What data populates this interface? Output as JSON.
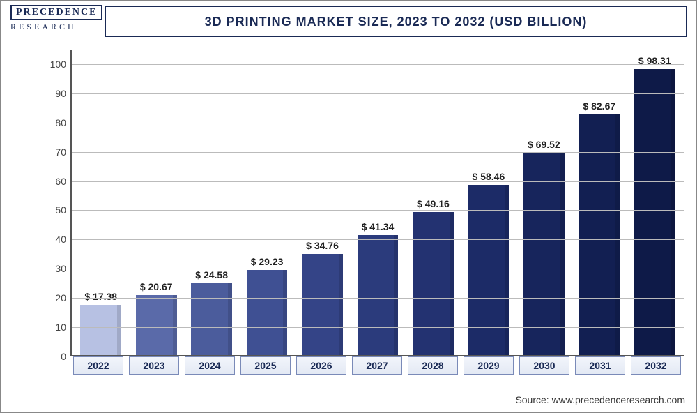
{
  "logo": {
    "top": "PRECEDENCE",
    "bottom": "RESEARCH"
  },
  "title": "3D PRINTING MARKET SIZE, 2023 TO 2032 (USD BILLION)",
  "source": "Source: www.precedenceresearch.com",
  "chart": {
    "type": "bar",
    "ylim": [
      0,
      105
    ],
    "ytick_step": 10,
    "yticks": [
      0,
      10,
      20,
      30,
      40,
      50,
      60,
      70,
      80,
      90,
      100
    ],
    "grid_color": "#bbbbbb",
    "axis_color": "#555555",
    "background_color": "#ffffff",
    "bar_width_pct": 74,
    "label_prefix": "$ ",
    "label_fontsize": 14,
    "label_fontweight": "bold",
    "xlabel_fontsize": 14,
    "title_fontsize": 18,
    "title_color": "#1a2a55",
    "categories": [
      "2022",
      "2023",
      "2024",
      "2025",
      "2026",
      "2027",
      "2028",
      "2029",
      "2030",
      "2031",
      "2032"
    ],
    "values": [
      17.38,
      20.67,
      24.58,
      29.23,
      34.76,
      41.34,
      49.16,
      58.46,
      69.52,
      82.67,
      98.31
    ],
    "bar_colors": [
      "#b7c1e3",
      "#5a6aa9",
      "#4b5c9c",
      "#3f5093",
      "#344487",
      "#2b3b7c",
      "#233271",
      "#1c2b67",
      "#17255c",
      "#121f52",
      "#0e1a48"
    ]
  }
}
